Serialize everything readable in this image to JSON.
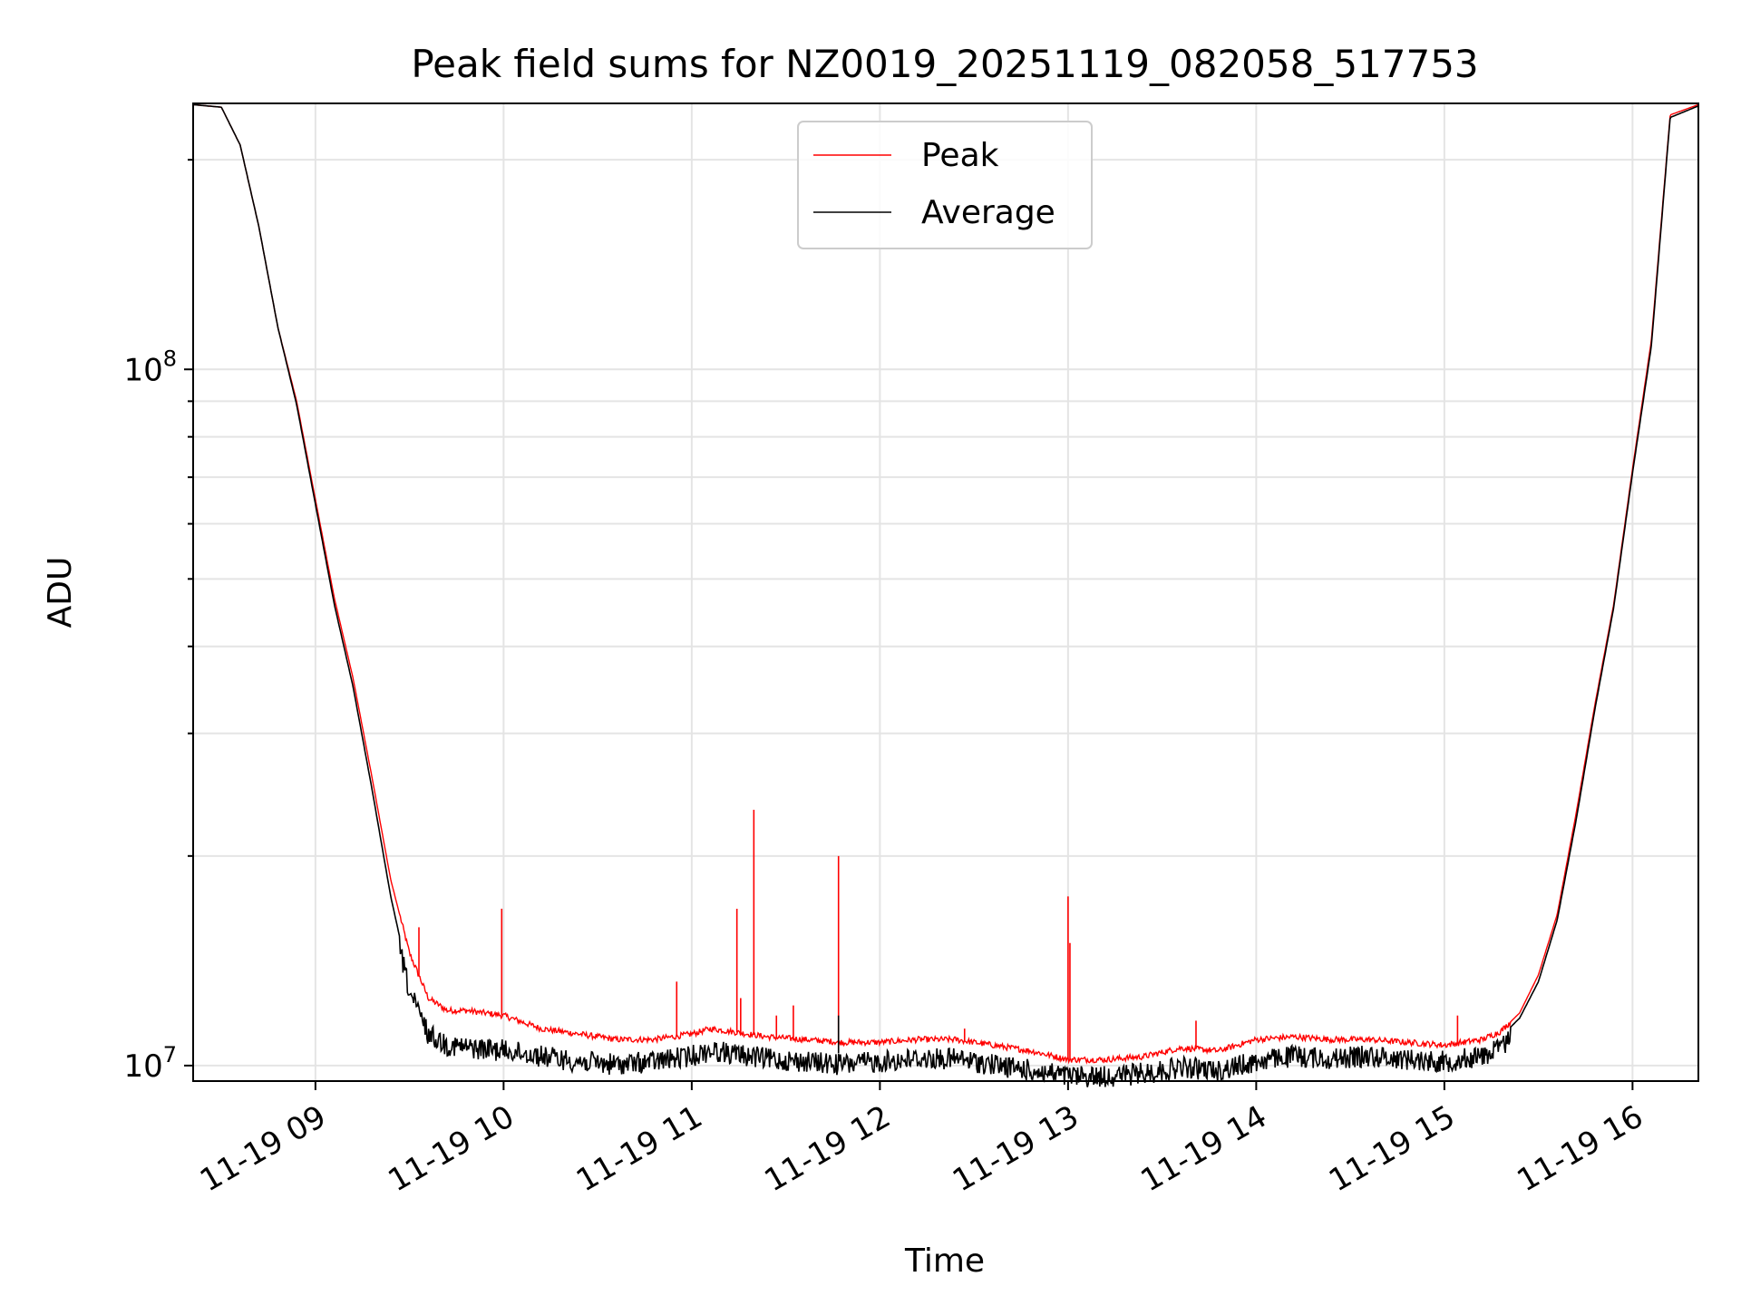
{
  "chart_data": {
    "type": "line",
    "title": "Peak field sums for NZ0019_20251119_082058_517753",
    "xlabel": "Time",
    "ylabel": "ADU",
    "yscale": "log",
    "xlim": [
      8.35,
      16.35
    ],
    "ylim": [
      9500000,
      241000000
    ],
    "x_unit": "hour of day (2025-11-19)",
    "x_ticks": [
      {
        "value": 9,
        "label": "11-19 09"
      },
      {
        "value": 10,
        "label": "11-19 10"
      },
      {
        "value": 11,
        "label": "11-19 11"
      },
      {
        "value": 12,
        "label": "11-19 12"
      },
      {
        "value": 13,
        "label": "11-19 13"
      },
      {
        "value": 14,
        "label": "11-19 14"
      },
      {
        "value": 15,
        "label": "11-19 15"
      },
      {
        "value": 16,
        "label": "11-19 16"
      }
    ],
    "y_ticks": [
      {
        "value": 10000000,
        "label_base": "10",
        "label_exp": "7"
      },
      {
        "value": 100000000,
        "label_base": "10",
        "label_exp": "8"
      }
    ],
    "grid": true,
    "legend_position": "top-center",
    "legend": [
      "Peak",
      "Average"
    ],
    "series": [
      {
        "name": "Peak",
        "color": "#ff0000",
        "x": [
          8.35,
          8.5,
          8.6,
          8.7,
          8.8,
          8.9,
          9.0,
          9.1,
          9.2,
          9.3,
          9.4,
          9.5,
          9.6,
          9.7,
          9.8,
          10.0,
          10.2,
          10.4,
          10.6,
          10.8,
          11.0,
          11.1,
          11.2,
          11.4,
          11.6,
          11.8,
          12.0,
          12.2,
          12.4,
          12.6,
          12.8,
          13.0,
          13.2,
          13.4,
          13.6,
          13.8,
          14.0,
          14.2,
          14.4,
          14.6,
          14.8,
          15.0,
          15.2,
          15.3,
          15.4,
          15.5,
          15.6,
          15.7,
          15.8,
          15.9,
          16.0,
          16.1,
          16.2,
          16.35
        ],
        "y": [
          240000000,
          238000000,
          210000000,
          160000000,
          115000000,
          90000000,
          65000000,
          47000000,
          36000000,
          26000000,
          18500000,
          14500000,
          12500000,
          12000000,
          12000000,
          11800000,
          11300000,
          11100000,
          10900000,
          10900000,
          11100000,
          11300000,
          11200000,
          11000000,
          10900000,
          10800000,
          10800000,
          10900000,
          10900000,
          10700000,
          10500000,
          10200000,
          10200000,
          10300000,
          10600000,
          10500000,
          10900000,
          11000000,
          10900000,
          10900000,
          10800000,
          10700000,
          10900000,
          11200000,
          11900000,
          13500000,
          16500000,
          23000000,
          33000000,
          46000000,
          72000000,
          110000000,
          232000000,
          240000000
        ],
        "spikes": [
          {
            "x": 9.55,
            "y": 15800000
          },
          {
            "x": 9.99,
            "y": 16800000
          },
          {
            "x": 10.92,
            "y": 13200000
          },
          {
            "x": 11.24,
            "y": 16800000
          },
          {
            "x": 11.26,
            "y": 12500000
          },
          {
            "x": 11.33,
            "y": 23300000
          },
          {
            "x": 11.45,
            "y": 11800000
          },
          {
            "x": 11.54,
            "y": 12200000
          },
          {
            "x": 11.78,
            "y": 20000000
          },
          {
            "x": 12.45,
            "y": 11300000
          },
          {
            "x": 13.0,
            "y": 17500000
          },
          {
            "x": 13.01,
            "y": 15000000
          },
          {
            "x": 13.68,
            "y": 11600000
          },
          {
            "x": 15.07,
            "y": 11800000
          }
        ]
      },
      {
        "name": "Average",
        "color": "#000000",
        "x": [
          8.35,
          8.5,
          8.6,
          8.7,
          8.8,
          8.9,
          9.0,
          9.1,
          9.2,
          9.3,
          9.4,
          9.5,
          9.6,
          9.7,
          9.8,
          10.0,
          10.2,
          10.4,
          10.6,
          10.8,
          11.0,
          11.1,
          11.2,
          11.4,
          11.6,
          11.8,
          12.0,
          12.2,
          12.4,
          12.6,
          12.8,
          13.0,
          13.2,
          13.4,
          13.6,
          13.8,
          14.0,
          14.2,
          14.4,
          14.6,
          14.8,
          15.0,
          15.2,
          15.3,
          15.4,
          15.5,
          15.6,
          15.7,
          15.8,
          15.9,
          16.0,
          16.1,
          16.2,
          16.35
        ],
        "y": [
          240000000,
          238000000,
          210000000,
          160000000,
          115000000,
          89000000,
          64000000,
          46000000,
          35000000,
          25000000,
          17500000,
          13200000,
          11500000,
          11100000,
          11000000,
          10900000,
          10700000,
          10500000,
          10400000,
          10500000,
          10700000,
          10900000,
          10800000,
          10600000,
          10500000,
          10400000,
          10500000,
          10600000,
          10600000,
          10400000,
          10200000,
          10000000,
          10000000,
          10100000,
          10300000,
          10200000,
          10500000,
          10700000,
          10600000,
          10700000,
          10600000,
          10500000,
          10700000,
          11000000,
          11700000,
          13200000,
          16200000,
          22500000,
          32500000,
          45500000,
          71000000,
          108000000,
          230000000,
          239000000
        ],
        "spikes": [
          {
            "x": 11.78,
            "y": 11800000
          }
        ]
      }
    ]
  }
}
